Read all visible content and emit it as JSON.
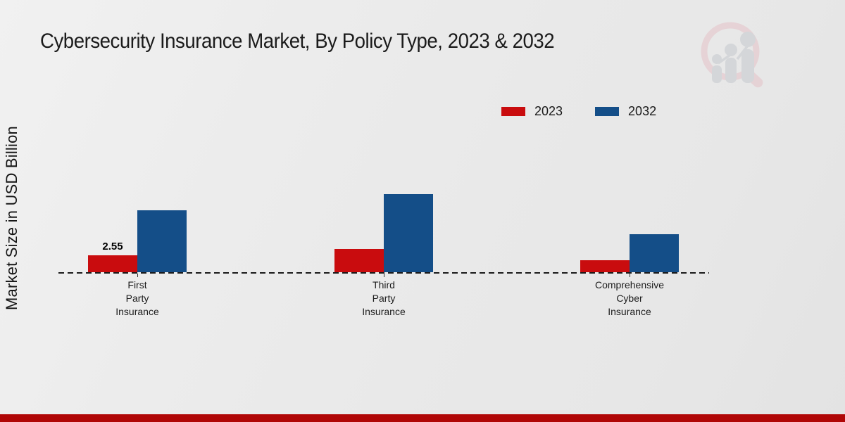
{
  "page": {
    "title": "Cybersecurity Insurance Market, By Policy Type, 2023 & 2032",
    "y_axis_label": "Market Size in USD Billion"
  },
  "legend": [
    {
      "label": "2023",
      "color": "#c90c0e"
    },
    {
      "label": "2032",
      "color": "#144e88"
    }
  ],
  "chart_data": {
    "type": "bar",
    "title": "Cybersecurity Insurance Market, By Policy Type, 2023 & 2032",
    "xlabel": "",
    "ylabel": "Market Size in USD Billion",
    "categories": [
      "First Party Insurance",
      "Third Party Insurance",
      "Comprehensive Cyber Insurance"
    ],
    "category_lines": [
      [
        "First",
        "Party",
        "Insurance"
      ],
      [
        "Third",
        "Party",
        "Insurance"
      ],
      [
        "Comprehensive",
        "Cyber",
        "Insurance"
      ]
    ],
    "series": [
      {
        "name": "2023",
        "color": "#c90c0e",
        "values": [
          2.55,
          3.4,
          1.8
        ]
      },
      {
        "name": "2032",
        "color": "#144e88",
        "values": [
          9.2,
          11.65,
          5.65
        ]
      }
    ],
    "data_labels": [
      {
        "series": "2023",
        "category_index": 0,
        "text": "2.55"
      }
    ],
    "ylim": [
      0,
      13
    ],
    "grid": false,
    "legend_position": "top-right",
    "baseline_style": "dashed-black"
  },
  "branding": {
    "logo_icon": "magnifier-bar-chart-watermark",
    "logo_ring_color": "#e5c2c8",
    "logo_bar_color": "#c5c9ce",
    "footer_bar_color": "#b00606"
  }
}
